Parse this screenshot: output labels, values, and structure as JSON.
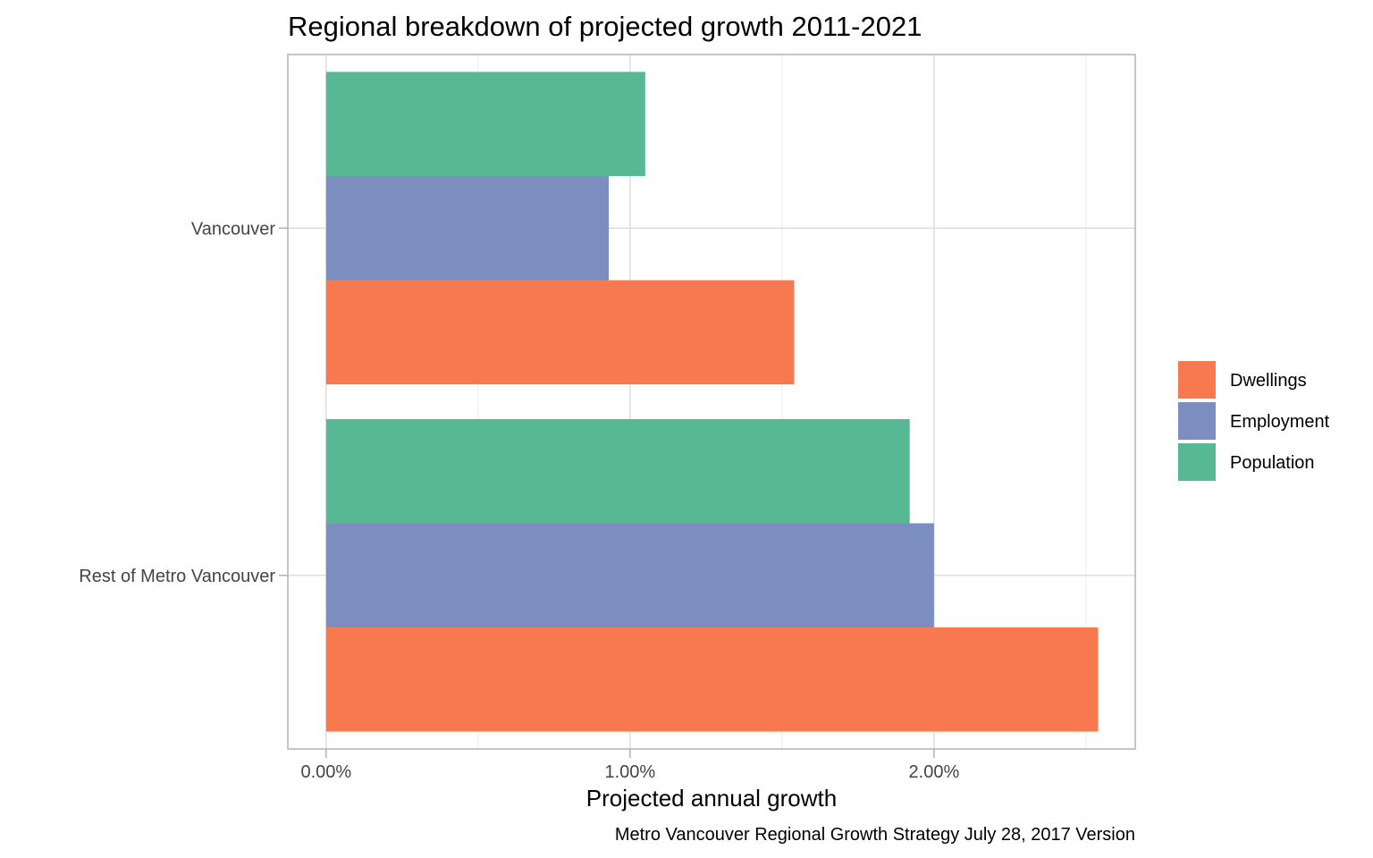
{
  "chart_data": {
    "type": "bar",
    "orientation": "horizontal",
    "title": "Regional breakdown of projected growth 2011-2021",
    "xlabel": "Projected annual growth",
    "ylabel": "",
    "caption": "Metro Vancouver Regional Growth Strategy July 28, 2017 Version",
    "categories": [
      "Vancouver",
      "Rest of Metro Vancouver"
    ],
    "series": [
      {
        "name": "Dwellings",
        "color": "#F8794F",
        "values": [
          1.54,
          2.54
        ]
      },
      {
        "name": "Employment",
        "color": "#7B8EBF",
        "values": [
          0.93,
          2.0
        ]
      },
      {
        "name": "Population",
        "color": "#57B994",
        "values": [
          1.05,
          1.92
        ]
      }
    ],
    "value_unit": "%",
    "xlim": [
      -0.126,
      2.662
    ],
    "x_ticks": [
      0,
      1,
      2
    ],
    "x_tick_labels": [
      "0.00%",
      "1.00%",
      "2.00%"
    ],
    "x_minor_ticks": [
      0.5,
      1.5,
      2.5
    ],
    "grid": true,
    "legend": {
      "position": "right",
      "entries": [
        "Dwellings",
        "Employment",
        "Population"
      ]
    }
  }
}
